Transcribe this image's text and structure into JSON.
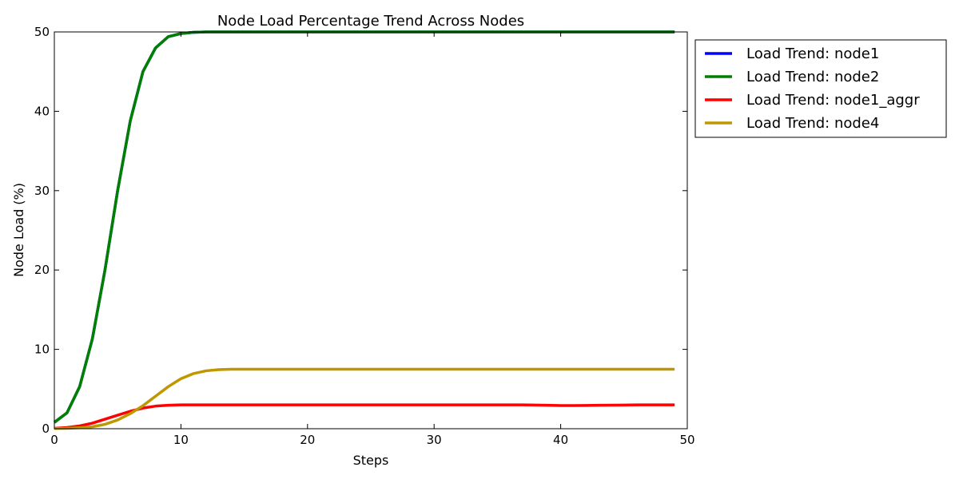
{
  "chart_data": {
    "type": "line",
    "title": "Node Load Percentage Trend Across Nodes",
    "xlabel": "Steps",
    "ylabel": "Node Load (%)",
    "xlim": [
      0,
      50
    ],
    "ylim": [
      0,
      50
    ],
    "xticks": [
      0,
      10,
      20,
      30,
      40,
      50
    ],
    "yticks": [
      0,
      10,
      20,
      30,
      40,
      50
    ],
    "grid": false,
    "legend_position": "outside-top-right",
    "x": [
      0,
      1,
      2,
      3,
      4,
      5,
      6,
      7,
      8,
      9,
      10,
      11,
      12,
      13,
      14,
      15,
      16,
      17,
      18,
      19,
      20,
      21,
      22,
      23,
      24,
      25,
      26,
      27,
      28,
      29,
      30,
      31,
      32,
      33,
      34,
      35,
      36,
      37,
      38,
      39,
      40,
      41,
      42,
      43,
      44,
      45,
      46,
      47,
      48,
      49
    ],
    "series": [
      {
        "name": "Load Trend: node1",
        "color": "#0000ff",
        "values": [
          0.8,
          2.0,
          5.3,
          11.3,
          20.0,
          30.0,
          38.8,
          45.0,
          48.0,
          49.4,
          49.8,
          49.95,
          50,
          50,
          50,
          50,
          50,
          50,
          50,
          50,
          50,
          50,
          50,
          50,
          50,
          50,
          50,
          50,
          50,
          50,
          50,
          50,
          50,
          50,
          50,
          50,
          50,
          50,
          50,
          50,
          50,
          50,
          50,
          50,
          50,
          50,
          50,
          50,
          50,
          50
        ]
      },
      {
        "name": "Load Trend: node2",
        "color": "#008000",
        "values": [
          0.8,
          2.0,
          5.3,
          11.3,
          20.0,
          30.0,
          38.8,
          45.0,
          48.0,
          49.4,
          49.8,
          49.95,
          50,
          50,
          50,
          50,
          50,
          50,
          50,
          50,
          50,
          50,
          50,
          50,
          50,
          50,
          50,
          50,
          50,
          50,
          50,
          50,
          50,
          50,
          50,
          50,
          50,
          50,
          50,
          50,
          50,
          50,
          50,
          50,
          50,
          50,
          50,
          50,
          50,
          50
        ]
      },
      {
        "name": "Load Trend: node1_aggr",
        "color": "#ff0000",
        "values": [
          0.05,
          0.15,
          0.35,
          0.7,
          1.2,
          1.7,
          2.2,
          2.6,
          2.85,
          2.95,
          3.0,
          3.0,
          3.0,
          3.0,
          3.0,
          3.0,
          3.0,
          3.0,
          3.0,
          3.0,
          3.0,
          3.0,
          3.0,
          3.0,
          3.0,
          3.0,
          3.0,
          3.0,
          3.0,
          3.0,
          3.0,
          3.0,
          3.0,
          3.0,
          3.0,
          3.0,
          3.0,
          3.0,
          2.98,
          2.95,
          2.92,
          2.92,
          2.93,
          2.95,
          2.97,
          2.98,
          3.0,
          3.0,
          3.0,
          3.0
        ]
      },
      {
        "name": "Load Trend: node4",
        "color": "#bf9800",
        "values": [
          0.02,
          0.05,
          0.12,
          0.25,
          0.55,
          1.1,
          1.9,
          2.9,
          4.1,
          5.3,
          6.3,
          6.95,
          7.3,
          7.45,
          7.5,
          7.5,
          7.5,
          7.5,
          7.5,
          7.5,
          7.5,
          7.5,
          7.5,
          7.5,
          7.5,
          7.5,
          7.5,
          7.5,
          7.5,
          7.5,
          7.5,
          7.5,
          7.5,
          7.5,
          7.5,
          7.5,
          7.5,
          7.5,
          7.5,
          7.5,
          7.5,
          7.5,
          7.5,
          7.5,
          7.5,
          7.5,
          7.5,
          7.5,
          7.5,
          7.5
        ]
      }
    ]
  }
}
